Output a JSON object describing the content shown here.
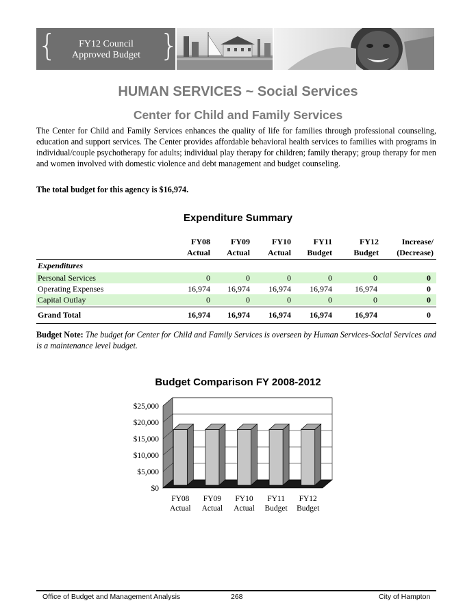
{
  "banner": {
    "line1": "FY12 Council",
    "line2": "Approved Budget"
  },
  "heading": {
    "title": "HUMAN SERVICES ~ Social Services",
    "subtitle": "Center for Child and Family Services"
  },
  "intro": "The Center for Child and Family Services enhances the quality of life for families through professional counseling, education and support services. The Center provides affordable behavioral health services to families with programs in  individual/couple psychotherapy for adults; individual play therapy for children; family therapy; group therapy for men and women involved with domestic violence and debt management and budget counseling.",
  "total_line": "The total budget for this agency is $16,974.",
  "expenditure": {
    "title": "Expenditure Summary",
    "columns": [
      {
        "l1": "FY08",
        "l2": "Actual"
      },
      {
        "l1": "FY09",
        "l2": "Actual"
      },
      {
        "l1": "FY10",
        "l2": "Actual"
      },
      {
        "l1": "FY11",
        "l2": "Budget"
      },
      {
        "l1": "FY12",
        "l2": "Budget"
      },
      {
        "l1": "Increase/",
        "l2": "(Decrease)"
      }
    ],
    "section_label": "Expenditures",
    "rows": [
      {
        "label": "Personal Services",
        "values": [
          "0",
          "0",
          "0",
          "0",
          "0",
          "0"
        ]
      },
      {
        "label": "Operating Expenses",
        "values": [
          "16,974",
          "16,974",
          "16,974",
          "16,974",
          "16,974",
          "0"
        ]
      },
      {
        "label": "Capital Outlay",
        "values": [
          "0",
          "0",
          "0",
          "0",
          "0",
          "0"
        ]
      }
    ],
    "grand_total": {
      "label": "Grand Total",
      "values": [
        "16,974",
        "16,974",
        "16,974",
        "16,974",
        "16,974",
        "0"
      ]
    }
  },
  "budget_note": {
    "label": "Budget Note:",
    "text": "The budget for Center for Child and Family Services is overseen by Human Services-Social Services and is a maintenance level budget."
  },
  "chart_data": {
    "type": "bar",
    "title": "Budget Comparison FY 2008-2012",
    "categories": [
      [
        "FY08",
        "Actual"
      ],
      [
        "FY09",
        "Actual"
      ],
      [
        "FY10",
        "Actual"
      ],
      [
        "FY11",
        "Budget"
      ],
      [
        "FY12",
        "Budget"
      ]
    ],
    "values": [
      16974,
      16974,
      16974,
      16974,
      16974
    ],
    "ylim": [
      0,
      25000
    ],
    "yticks": [
      "$0",
      "$5,000",
      "$10,000",
      "$15,000",
      "$20,000",
      "$25,000"
    ],
    "grid": true,
    "legend": "none",
    "colors": {
      "bar_front": "#c6c6c6",
      "bar_side": "#7c7c7c",
      "bar_top": "#a8a8a8"
    }
  },
  "footer": {
    "left": "Office of Budget and Management Analysis",
    "center": "268",
    "right": "City of Hampton"
  }
}
